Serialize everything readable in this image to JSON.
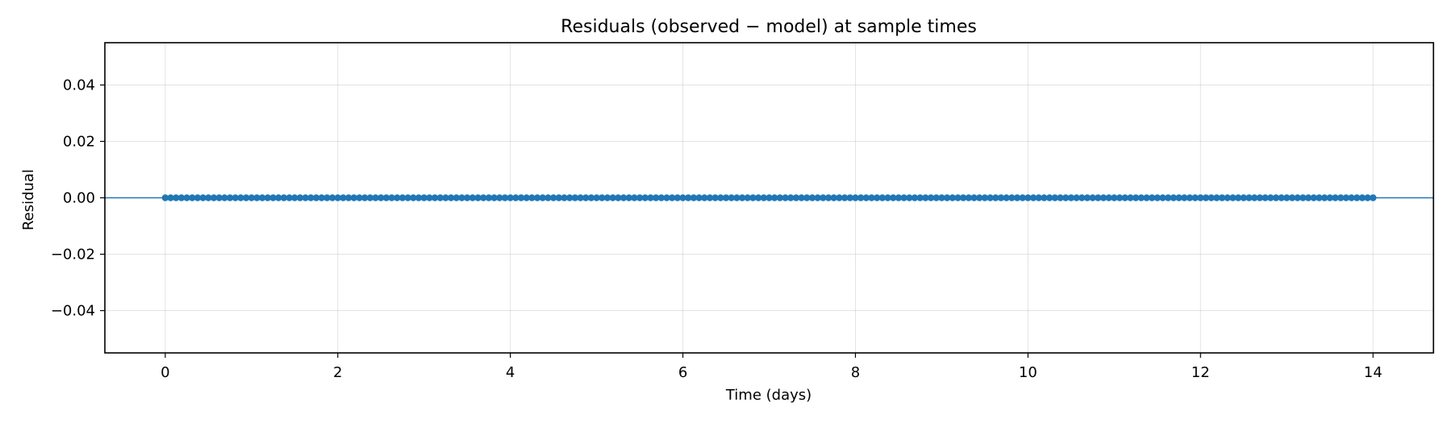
{
  "chart_data": {
    "type": "scatter",
    "title": "Residuals (observed − model) at sample times",
    "xlabel": "Time (days)",
    "ylabel": "Residual",
    "xlim": [
      -0.7,
      14.7
    ],
    "ylim": [
      -0.055,
      0.055
    ],
    "xticks": [
      0,
      2,
      4,
      6,
      8,
      10,
      12,
      14
    ],
    "xtick_labels": [
      "0",
      "2",
      "4",
      "6",
      "8",
      "10",
      "12",
      "14"
    ],
    "yticks": [
      -0.04,
      -0.02,
      0.0,
      0.02,
      0.04
    ],
    "ytick_labels": [
      "−0.04",
      "−0.02",
      "0.00",
      "0.02",
      "0.04"
    ],
    "grid": true,
    "reference_line": {
      "y": 0,
      "color": "#1f77b4"
    },
    "series": [
      {
        "color": "#1f77b4",
        "x_start": 0,
        "x_end": 14,
        "x_step": 0.0625,
        "y_constant": 0
      }
    ]
  }
}
